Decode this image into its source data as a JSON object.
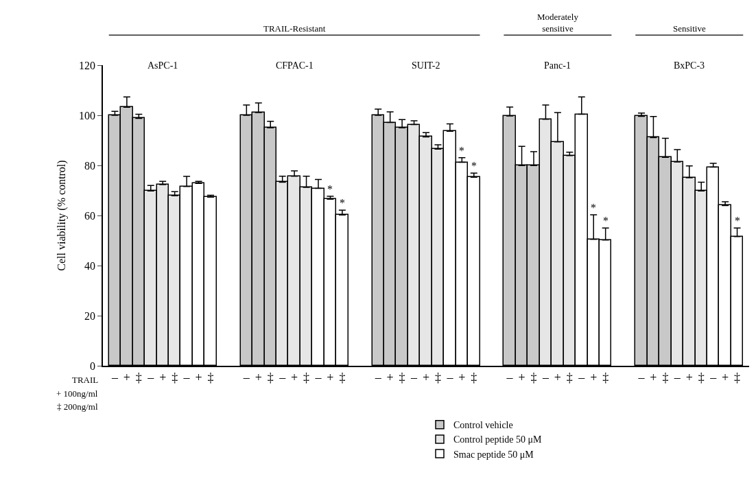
{
  "chart_data": {
    "type": "bar",
    "ylabel": "Cell viability (% control)",
    "ylim": [
      0,
      120
    ],
    "yticks": [
      0,
      20,
      40,
      60,
      80,
      100,
      120
    ],
    "legend": "bottom",
    "categories": [
      "–",
      "+",
      "‡",
      "–",
      "+",
      "‡",
      "–",
      "+",
      "‡",
      null,
      null,
      "–",
      "+",
      "‡",
      "–",
      "+",
      "‡",
      "–",
      "+",
      "‡",
      null,
      null,
      "–",
      "+",
      "‡",
      "–",
      "+",
      "‡",
      "–",
      "+",
      "‡",
      null,
      null,
      "–",
      "+",
      "‡",
      "–",
      "+",
      "‡",
      "–",
      "+",
      "‡",
      null,
      null,
      "–",
      "+",
      "‡",
      "–",
      "+",
      "‡",
      "–",
      "+",
      "‡"
    ],
    "annotations": [
      "AsPC-1",
      "CFPAC-1",
      "SUIT-2",
      "Panc-1",
      "BxPC-3",
      "TRAIL-Resistant",
      "Moderately\nsensitive",
      "Sensitive",
      "TRAIL",
      "+ 100ng/ml",
      "‡ 200ng/ml"
    ],
    "series": [
      {
        "name": "Control vehicle",
        "color": "#c8c8c8",
        "values": [
          100,
          103.2,
          98.8,
          null,
          null,
          null,
          null,
          null,
          null,
          null,
          null,
          100,
          101.1,
          95.0,
          null,
          null,
          null,
          null,
          null,
          null,
          null,
          null,
          100,
          97.1,
          95.0,
          null,
          null,
          null,
          null,
          null,
          null,
          null,
          null,
          99.7,
          79.9,
          79.9,
          null,
          null,
          null,
          null,
          null,
          null,
          null,
          null,
          99.6,
          91.1,
          83.2,
          null,
          null,
          null,
          null,
          null,
          null
        ],
        "errors": [
          [
            100,
            101.6
          ],
          [
            103.2,
            107.3
          ],
          [
            98.8,
            100.4
          ],
          null,
          null,
          null,
          null,
          null,
          null,
          null,
          null,
          [
            100,
            104.1
          ],
          [
            101.1,
            104.9
          ],
          [
            95.0,
            97.6
          ],
          null,
          null,
          null,
          null,
          null,
          null,
          null,
          null,
          [
            100,
            102.5
          ],
          [
            97.1,
            101.4
          ],
          [
            95.0,
            98.3
          ],
          null,
          null,
          null,
          null,
          null,
          null,
          null,
          null,
          [
            99.7,
            103.3
          ],
          [
            79.9,
            87.6
          ],
          [
            79.9,
            85.5
          ],
          null,
          null,
          null,
          null,
          null,
          null,
          null,
          null,
          [
            99.6,
            100.9
          ],
          [
            91.1,
            99.5
          ],
          [
            83.2,
            90.8
          ],
          null,
          null,
          null,
          null,
          null,
          null
        ]
      },
      {
        "name": "Control peptide 50 μM",
        "color": "#e6e6e6",
        "values": [
          null,
          null,
          null,
          69.8,
          72.3,
          67.9,
          null,
          null,
          null,
          null,
          null,
          null,
          null,
          null,
          73.3,
          75.7,
          71.2,
          null,
          null,
          null,
          null,
          null,
          null,
          null,
          null,
          96.3,
          91.4,
          86.5,
          null,
          null,
          null,
          null,
          null,
          null,
          null,
          null,
          98.4,
          89.4,
          83.9,
          null,
          null,
          null,
          null,
          null,
          null,
          null,
          null,
          81.4,
          75.1,
          69.8,
          null,
          null,
          null
        ],
        "errors": [
          null,
          null,
          null,
          [
            69.8,
            72
          ],
          [
            72.3,
            73.6
          ],
          [
            67.9,
            69.5
          ],
          null,
          null,
          null,
          null,
          null,
          null,
          null,
          null,
          [
            73.3,
            75.7
          ],
          [
            75.7,
            77.8
          ],
          [
            71.2,
            75.7
          ],
          null,
          null,
          null,
          null,
          null,
          null,
          null,
          null,
          [
            96.3,
            97.8
          ],
          [
            91.4,
            93.1
          ],
          [
            86.5,
            88.2
          ],
          null,
          null,
          null,
          null,
          null,
          null,
          null,
          null,
          [
            98.4,
            104.1
          ],
          [
            89.4,
            101.1
          ],
          [
            83.9,
            85.3
          ],
          null,
          null,
          null,
          null,
          null,
          null,
          null,
          null,
          [
            81.4,
            86.3
          ],
          [
            75.1,
            79.8
          ],
          [
            69.8,
            73.3
          ],
          null,
          null,
          null
        ]
      },
      {
        "name": "Smac peptide 50 μM",
        "color": "#ffffff",
        "values": [
          null,
          null,
          null,
          null,
          null,
          null,
          71.6,
          72.8,
          67.3,
          null,
          null,
          null,
          null,
          null,
          null,
          null,
          null,
          70.8,
          66.5,
          60.2,
          null,
          null,
          null,
          null,
          null,
          null,
          null,
          null,
          93.6,
          81.2,
          75.3,
          null,
          null,
          null,
          null,
          null,
          null,
          null,
          null,
          100.4,
          50.5,
          50.2,
          null,
          null,
          null,
          null,
          null,
          null,
          null,
          null,
          79.3,
          64,
          51.6
        ],
        "errors": [
          null,
          null,
          null,
          null,
          null,
          null,
          [
            71.6,
            75.6
          ],
          [
            72.8,
            73.6
          ],
          [
            67.3,
            68.1
          ],
          null,
          null,
          null,
          null,
          null,
          null,
          null,
          null,
          [
            70.8,
            74.4
          ],
          [
            66.5,
            67.7
          ],
          [
            60.2,
            62.1
          ],
          null,
          null,
          null,
          null,
          null,
          null,
          null,
          null,
          [
            93.6,
            96.6
          ],
          [
            81.2,
            83.1
          ],
          [
            75.3,
            76.9
          ],
          null,
          null,
          null,
          null,
          null,
          null,
          null,
          null,
          [
            100.4,
            107.3
          ],
          [
            50.5,
            60.3
          ],
          [
            50.2,
            55
          ],
          null,
          null,
          null,
          null,
          null,
          null,
          null,
          null,
          [
            79.3,
            80.8
          ],
          [
            64,
            65.5
          ],
          [
            51.6,
            55
          ]
        ],
        "value_labels": [
          null,
          null,
          null,
          null,
          null,
          null,
          null,
          null,
          null,
          null,
          null,
          null,
          null,
          null,
          null,
          null,
          null,
          null,
          "*",
          "*",
          null,
          null,
          null,
          null,
          null,
          null,
          null,
          null,
          null,
          "*",
          "*",
          null,
          null,
          null,
          null,
          null,
          null,
          null,
          null,
          null,
          "*",
          "*",
          null,
          null,
          null,
          null,
          null,
          null,
          null,
          null,
          null,
          null,
          "*"
        ]
      }
    ]
  }
}
